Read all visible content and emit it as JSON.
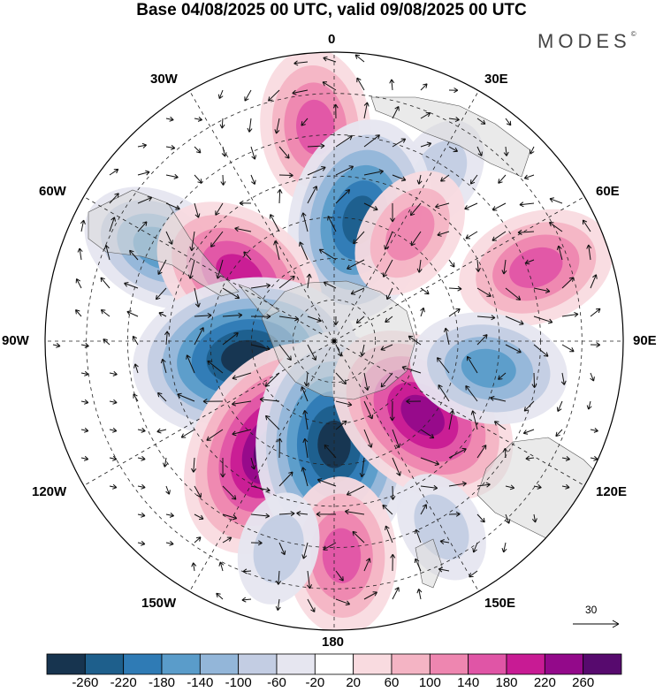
{
  "title": "Base 04/08/2025 00 UTC, valid 09/08/2025 00 UTC",
  "brand": "MODES",
  "brand_mark": "©",
  "longitude_labels": {
    "top": "0",
    "bottom": "180",
    "left": "90W",
    "right": "90E",
    "nw1": "30W",
    "nw2": "60W",
    "sw1": "120W",
    "sw2": "150W",
    "ne1": "30E",
    "ne2": "60E",
    "se1": "120E",
    "se2": "150E"
  },
  "vector_reference": "30",
  "colorbar": {
    "labels": [
      "-260",
      "-220",
      "-180",
      "-140",
      "-100",
      "-60",
      "-20",
      "20",
      "60",
      "100",
      "140",
      "180",
      "220",
      "260"
    ],
    "colors": [
      "#17344f",
      "#1e5f8c",
      "#2f7bb5",
      "#5a9cca",
      "#93b6d9",
      "#c3cde3",
      "#e6e6f0",
      "#ffffff",
      "#f9dbe0",
      "#f4b4c4",
      "#ee86b0",
      "#e055a6",
      "#c81b94",
      "#93098a",
      "#570a6e"
    ]
  },
  "map_data": {
    "field": "geopotential height anomaly",
    "projection": "south polar stereographic",
    "anomalies": [
      {
        "lon": -5,
        "lat": -38,
        "value": 140
      },
      {
        "lon": 32,
        "lat": -42,
        "value": -60
      },
      {
        "lon": 12,
        "lat": -60,
        "value": -220
      },
      {
        "lon": 35,
        "lat": -58,
        "value": 100
      },
      {
        "lon": -62,
        "lat": -42,
        "value": -140
      },
      {
        "lon": -55,
        "lat": -62,
        "value": 180
      },
      {
        "lon": 70,
        "lat": -38,
        "value": 140
      },
      {
        "lon": -100,
        "lat": -68,
        "value": -260
      },
      {
        "lon": -150,
        "lat": -60,
        "value": 260
      },
      {
        "lon": 180,
        "lat": -65,
        "value": -260
      },
      {
        "lon": 130,
        "lat": -62,
        "value": 220
      },
      {
        "lon": 100,
        "lat": -52,
        "value": -140
      },
      {
        "lon": 150,
        "lat": -38,
        "value": -60
      },
      {
        "lon": 178,
        "lat": -38,
        "value": 140
      },
      {
        "lon": -165,
        "lat": -38,
        "value": -60
      }
    ]
  }
}
